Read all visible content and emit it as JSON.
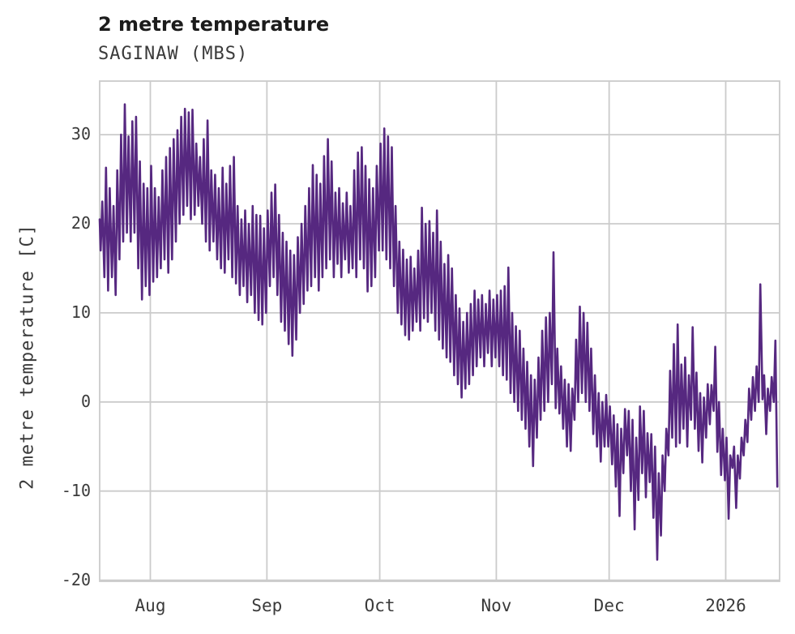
{
  "header": {
    "title": "2 metre temperature",
    "subtitle": "SAGINAW (MBS)"
  },
  "chart_data": {
    "type": "line",
    "title": "2 metre temperature",
    "subtitle": "SAGINAW (MBS)",
    "xlabel": "",
    "ylabel": "2 metre temperature [C]",
    "series_name": "2 metre temperature",
    "line_color": "#562880",
    "grid_color": "#cbcbcb",
    "grid": true,
    "legend": "none",
    "ylim": [
      -20.5,
      36
    ],
    "x_range_days": [
      0,
      180.3
    ],
    "y_ticks": [
      {
        "label": "30",
        "value": 30
      },
      {
        "label": "20",
        "value": 20
      },
      {
        "label": "10",
        "value": 10
      },
      {
        "label": "0",
        "value": 0
      },
      {
        "label": "-10",
        "value": -10
      },
      {
        "label": "-20",
        "value": -20
      }
    ],
    "x_ticks": [
      {
        "label": "Aug",
        "day": 13.47
      },
      {
        "label": "Sep",
        "day": 44.47
      },
      {
        "label": "Oct",
        "day": 74.47
      },
      {
        "label": "Nov",
        "day": 105.47
      },
      {
        "label": "Dec",
        "day": 135.47
      },
      {
        "label": "2026",
        "day": 166.47
      }
    ],
    "sampling_note": "hourly 2m temperature, ~mid-July 2025 through mid-January 2026; stored here as estimated daily [min,max] degC per plotted day",
    "start_point": [
      0,
      20.5
    ],
    "end_point": [
      180.2,
      -9.5
    ],
    "daily_min_max": [
      [
        17,
        22.5
      ],
      [
        14,
        26.3
      ],
      [
        12.5,
        24
      ],
      [
        14,
        22
      ],
      [
        12,
        26
      ],
      [
        16,
        30
      ],
      [
        18,
        33.4
      ],
      [
        19,
        29.8
      ],
      [
        18,
        31.5
      ],
      [
        19,
        32
      ],
      [
        15,
        27
      ],
      [
        11.5,
        24.5
      ],
      [
        13,
        24
      ],
      [
        12,
        26.5
      ],
      [
        13.5,
        24
      ],
      [
        14,
        23
      ],
      [
        15,
        26
      ],
      [
        16,
        27.5
      ],
      [
        14.5,
        28.5
      ],
      [
        16,
        29.5
      ],
      [
        18,
        30.5
      ],
      [
        20,
        32
      ],
      [
        21,
        32.9
      ],
      [
        22,
        32.5
      ],
      [
        20.5,
        32.8
      ],
      [
        21,
        29
      ],
      [
        22,
        27.5
      ],
      [
        20,
        29.5
      ],
      [
        18,
        31.6
      ],
      [
        17,
        26
      ],
      [
        18,
        25.5
      ],
      [
        16,
        24
      ],
      [
        15,
        26.3
      ],
      [
        14.5,
        24.5
      ],
      [
        16,
        26.5
      ],
      [
        14,
        27.5
      ],
      [
        13.3,
        22
      ],
      [
        12,
        20.5
      ],
      [
        13,
        21.5
      ],
      [
        11.2,
        20
      ],
      [
        12,
        22
      ],
      [
        10,
        21
      ],
      [
        9.2,
        20.9
      ],
      [
        8.7,
        19.5
      ],
      [
        10,
        21.5
      ],
      [
        13,
        23.5
      ],
      [
        14,
        24.4
      ],
      [
        12,
        21
      ],
      [
        9,
        19
      ],
      [
        8,
        18
      ],
      [
        6.5,
        17
      ],
      [
        5.2,
        16.5
      ],
      [
        7,
        18.5
      ],
      [
        10,
        20
      ],
      [
        11,
        22
      ],
      [
        12.5,
        24
      ],
      [
        13,
        26.6
      ],
      [
        14,
        25.5
      ],
      [
        12.5,
        24.5
      ],
      [
        14,
        27.6
      ],
      [
        15,
        29.5
      ],
      [
        16,
        27
      ],
      [
        14,
        23.5
      ],
      [
        15.5,
        24
      ],
      [
        14,
        22.3
      ],
      [
        16,
        23.5
      ],
      [
        14.5,
        22
      ],
      [
        15,
        26
      ],
      [
        14,
        28
      ],
      [
        16,
        28.6
      ],
      [
        15,
        26.5
      ],
      [
        12.4,
        25
      ],
      [
        13,
        24
      ],
      [
        14,
        26.5
      ],
      [
        17,
        29
      ],
      [
        17,
        30.7
      ],
      [
        16,
        29.8
      ],
      [
        15,
        28.6
      ],
      [
        13,
        22
      ],
      [
        10,
        18
      ],
      [
        8.7,
        17.1
      ],
      [
        7.5,
        16
      ],
      [
        7,
        16.3
      ],
      [
        8,
        15
      ],
      [
        9,
        17
      ],
      [
        8,
        21.8
      ],
      [
        9.4,
        20
      ],
      [
        9,
        20.3
      ],
      [
        10,
        19
      ],
      [
        8,
        21.5
      ],
      [
        7,
        18
      ],
      [
        6,
        15.5
      ],
      [
        5,
        16.5
      ],
      [
        4.5,
        15
      ],
      [
        3,
        12
      ],
      [
        2,
        10.5
      ],
      [
        0.5,
        9
      ],
      [
        1.5,
        10
      ],
      [
        2,
        11
      ],
      [
        3,
        12.5
      ],
      [
        4,
        11.5
      ],
      [
        5,
        12
      ],
      [
        4,
        11
      ],
      [
        5.5,
        12.5
      ],
      [
        4,
        11.5
      ],
      [
        5,
        12
      ],
      [
        4,
        12.5
      ],
      [
        3,
        13
      ],
      [
        2.5,
        15.1
      ],
      [
        1,
        10
      ],
      [
        0,
        8.5
      ],
      [
        -1,
        8
      ],
      [
        -2,
        6
      ],
      [
        -3,
        4.5
      ],
      [
        -5,
        3
      ],
      [
        -7.2,
        2.5
      ],
      [
        -4,
        5
      ],
      [
        -2,
        8
      ],
      [
        -1,
        9.5
      ],
      [
        0,
        10
      ],
      [
        2,
        16.8
      ],
      [
        -0.7,
        6
      ],
      [
        -1.3,
        4
      ],
      [
        -3,
        2.5
      ],
      [
        -5,
        2
      ],
      [
        -5.5,
        1.5
      ],
      [
        -2,
        7
      ],
      [
        0,
        10.7
      ],
      [
        1,
        10
      ],
      [
        0,
        8.9
      ],
      [
        -1,
        6
      ],
      [
        -3.6,
        3
      ],
      [
        -5,
        1
      ],
      [
        -6.7,
        0
      ],
      [
        -5,
        0.8
      ],
      [
        -5,
        -0.5
      ],
      [
        -7,
        -1.5
      ],
      [
        -9.5,
        -2.5
      ],
      [
        -12.8,
        -3
      ],
      [
        -8,
        -0.8
      ],
      [
        -6,
        -1
      ],
      [
        -10,
        -2
      ],
      [
        -14.3,
        -4
      ],
      [
        -11,
        -0.5
      ],
      [
        -8,
        -1
      ],
      [
        -10.7,
        -3.5
      ],
      [
        -9,
        -3.6
      ],
      [
        -13,
        -5
      ],
      [
        -17.7,
        -8
      ],
      [
        -15,
        -6
      ],
      [
        -10,
        -3
      ],
      [
        -6,
        3.5
      ],
      [
        -4,
        6.5
      ],
      [
        -5,
        8.7
      ],
      [
        -4.6,
        4.2
      ],
      [
        -3,
        5
      ],
      [
        -5,
        3
      ],
      [
        -2,
        8.4
      ],
      [
        -3,
        3.3
      ],
      [
        -5.5,
        1
      ],
      [
        -6.8,
        0.5
      ],
      [
        -4,
        2
      ],
      [
        -2.5,
        1.9
      ],
      [
        -1,
        6.2
      ],
      [
        -5.6,
        0
      ],
      [
        -8.2,
        -3
      ],
      [
        -8.8,
        -4
      ],
      [
        -13.1,
        -6
      ],
      [
        -7.4,
        -5
      ],
      [
        -11.9,
        -6
      ],
      [
        -8.6,
        -4
      ],
      [
        -6,
        -2
      ],
      [
        -4.5,
        1.5
      ],
      [
        -2,
        2.8
      ],
      [
        -1,
        4
      ],
      [
        0,
        13.2
      ],
      [
        0.3,
        3
      ],
      [
        -3.6,
        1.5
      ],
      [
        -1,
        2.8
      ],
      [
        0,
        6.9
      ]
    ]
  }
}
